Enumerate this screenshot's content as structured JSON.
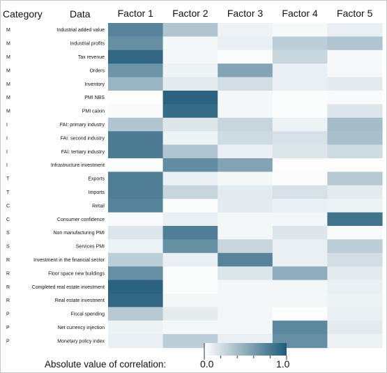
{
  "chart_data": {
    "type": "heatmap",
    "header": {
      "category": "Category",
      "data": "Data"
    },
    "columns": [
      "Factor 1",
      "Factor 2",
      "Factor 3",
      "Factor 4",
      "Factor 5"
    ],
    "rows": [
      {
        "category": "M",
        "name": "Industrial added value"
      },
      {
        "category": "M",
        "name": "Industrial profits"
      },
      {
        "category": "M",
        "name": "Tax revenue"
      },
      {
        "category": "M",
        "name": "Orders"
      },
      {
        "category": "M",
        "name": "Inventory"
      },
      {
        "category": "M",
        "name": "PMI NBS"
      },
      {
        "category": "M",
        "name": "PMI caixin"
      },
      {
        "category": "I",
        "name": "FAI: primary industry"
      },
      {
        "category": "I",
        "name": "FAI: second industry"
      },
      {
        "category": "I",
        "name": "FAI: tertiary industry"
      },
      {
        "category": "I",
        "name": "Infrastructure investment"
      },
      {
        "category": "T",
        "name": "Exports"
      },
      {
        "category": "T",
        "name": "Imports"
      },
      {
        "category": "C",
        "name": "Retail"
      },
      {
        "category": "C",
        "name": "Consumer confidence"
      },
      {
        "category": "S",
        "name": "Non manufacturing PMI"
      },
      {
        "category": "S",
        "name": "Services PMI"
      },
      {
        "category": "R",
        "name": "Investment in the financial sector"
      },
      {
        "category": "R",
        "name": "Floor space new buildings"
      },
      {
        "category": "R",
        "name": "Completed real estate investment"
      },
      {
        "category": "R",
        "name": "Real estate investment"
      },
      {
        "category": "P",
        "name": "Fiscal spending"
      },
      {
        "category": "P",
        "name": "Net currency injection"
      },
      {
        "category": "P",
        "name": "Monetary policy index"
      }
    ],
    "values": [
      [
        0.75,
        0.35,
        0.07,
        0.04,
        0.1
      ],
      [
        0.68,
        0.05,
        0.1,
        0.3,
        0.35
      ],
      [
        0.92,
        0.05,
        0.02,
        0.25,
        0.04
      ],
      [
        0.65,
        0.08,
        0.55,
        0.1,
        0.04
      ],
      [
        0.45,
        0.12,
        0.2,
        0.1,
        0.12
      ],
      [
        0.01,
        0.95,
        0.05,
        0.02,
        0.03
      ],
      [
        0.03,
        0.9,
        0.05,
        0.02,
        0.15
      ],
      [
        0.35,
        0.15,
        0.25,
        0.08,
        0.4
      ],
      [
        0.8,
        0.08,
        0.22,
        0.18,
        0.38
      ],
      [
        0.8,
        0.35,
        0.1,
        0.15,
        0.22
      ],
      [
        0.02,
        0.7,
        0.55,
        0.01,
        0.01
      ],
      [
        0.78,
        0.1,
        0.05,
        0.02,
        0.32
      ],
      [
        0.78,
        0.25,
        0.12,
        0.18,
        0.12
      ],
      [
        0.75,
        0.02,
        0.12,
        0.1,
        0.08
      ],
      [
        0.03,
        0.1,
        0.05,
        0.05,
        0.85
      ],
      [
        0.15,
        0.78,
        0.05,
        0.15,
        0.03
      ],
      [
        0.08,
        0.68,
        0.25,
        0.1,
        0.3
      ],
      [
        0.3,
        0.1,
        0.75,
        0.1,
        0.2
      ],
      [
        0.68,
        0.02,
        0.15,
        0.5,
        0.12
      ],
      [
        0.95,
        0.02,
        0.05,
        0.05,
        0.1
      ],
      [
        0.92,
        0.05,
        0.05,
        0.05,
        0.08
      ],
      [
        0.32,
        0.12,
        0.05,
        0.01,
        0.1
      ],
      [
        0.08,
        0.05,
        0.05,
        0.72,
        0.12
      ],
      [
        0.1,
        0.3,
        0.1,
        0.68,
        0.08
      ]
    ],
    "color_range": [
      0.0,
      1.0
    ],
    "colors": {
      "low": "#ffffff",
      "high": "#1f5a78"
    },
    "colorbar": {
      "title": "Absolute value of correlation:",
      "min_label": "0.0",
      "max_label": "1.0"
    },
    "legend_position": "bottom"
  }
}
